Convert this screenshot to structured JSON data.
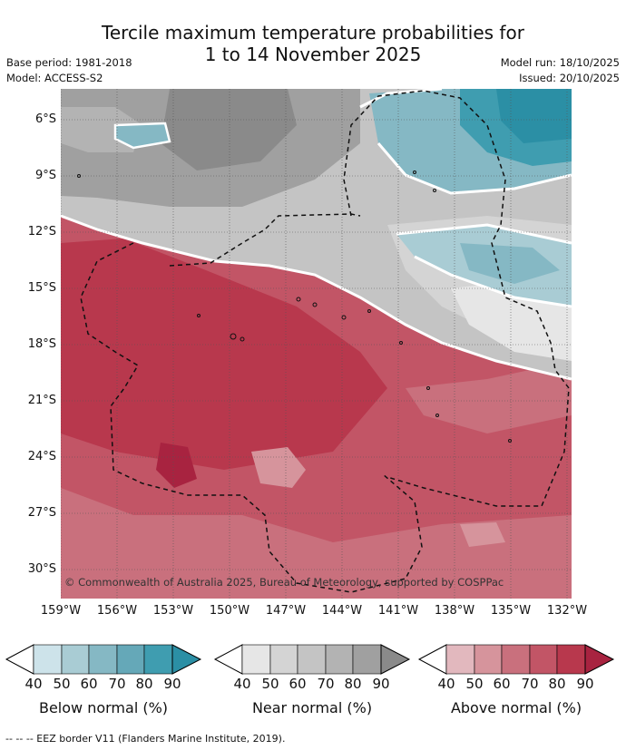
{
  "title_line1": "Tercile maximum temperature probabilities for",
  "title_line2": "1 to 14 November 2025",
  "base_period": "Base period: 1981-2018",
  "model": "Model: ACCESS-S2",
  "model_run": "Model run: 18/10/2025",
  "issued": "Issued: 20/10/2025",
  "lat_labels": [
    "6°S",
    "9°S",
    "12°S",
    "15°S",
    "18°S",
    "21°S",
    "24°S",
    "27°S",
    "30°S"
  ],
  "lon_labels": [
    "159°W",
    "156°W",
    "153°W",
    "150°W",
    "147°W",
    "144°W",
    "141°W",
    "138°W",
    "135°W",
    "132°W"
  ],
  "copyright": "© Commonwealth of Australia 2025, Bureau of Meteorology, supported by COSPPac",
  "colorbars": [
    {
      "label": "Below normal (%)",
      "ticks": [
        "40",
        "50",
        "60",
        "70",
        "80",
        "90"
      ],
      "colors": [
        "#cde3ea",
        "#a9ccd4",
        "#85b8c4",
        "#65a8b8",
        "#3f9db0",
        "#2b8fa5"
      ]
    },
    {
      "label": "Near normal (%)",
      "ticks": [
        "40",
        "50",
        "60",
        "70",
        "80",
        "90"
      ],
      "colors": [
        "#e6e6e6",
        "#d4d4d4",
        "#c4c4c4",
        "#b3b3b3",
        "#a0a0a0",
        "#8a8a8a"
      ]
    },
    {
      "label": "Above normal (%)",
      "ticks": [
        "40",
        "50",
        "60",
        "70",
        "80",
        "90"
      ],
      "colors": [
        "#e2b8be",
        "#d6949c",
        "#c9707d",
        "#c25566",
        "#b8384d",
        "#a82340"
      ]
    }
  ],
  "footnote": "--  --  -- EEZ border V11 (Flanders Marine Institute, 2019)."
}
